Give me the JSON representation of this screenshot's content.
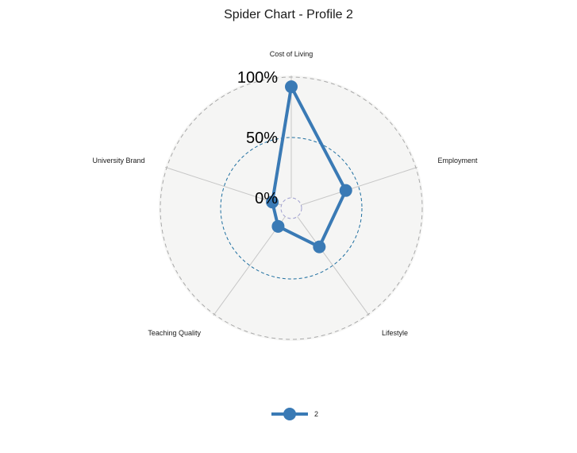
{
  "chart_data": {
    "type": "radar",
    "title": "Spider Chart - Profile 2",
    "axes": [
      "Cost of Living",
      "Employment",
      "Lifestyle",
      "Teaching Quality",
      "University Brand"
    ],
    "range": [
      0,
      1
    ],
    "grid_labels": [
      "0%",
      "50%",
      "100%"
    ],
    "grid_values": [
      0,
      0.5,
      1
    ],
    "series": [
      {
        "name": "2",
        "values": [
          0.92,
          0.39,
          0.31,
          0.1,
          0.08
        ],
        "color": "#3a7ab5"
      }
    ],
    "legend": {
      "position": "bottom"
    },
    "colors": {
      "background_fill": "#f5f5f4",
      "outer_ring": "#aaaaaa",
      "mid_ring": "#1f6fa0",
      "inner_ring": "#9f9fcf",
      "spoke": "#c6c6c6"
    }
  }
}
